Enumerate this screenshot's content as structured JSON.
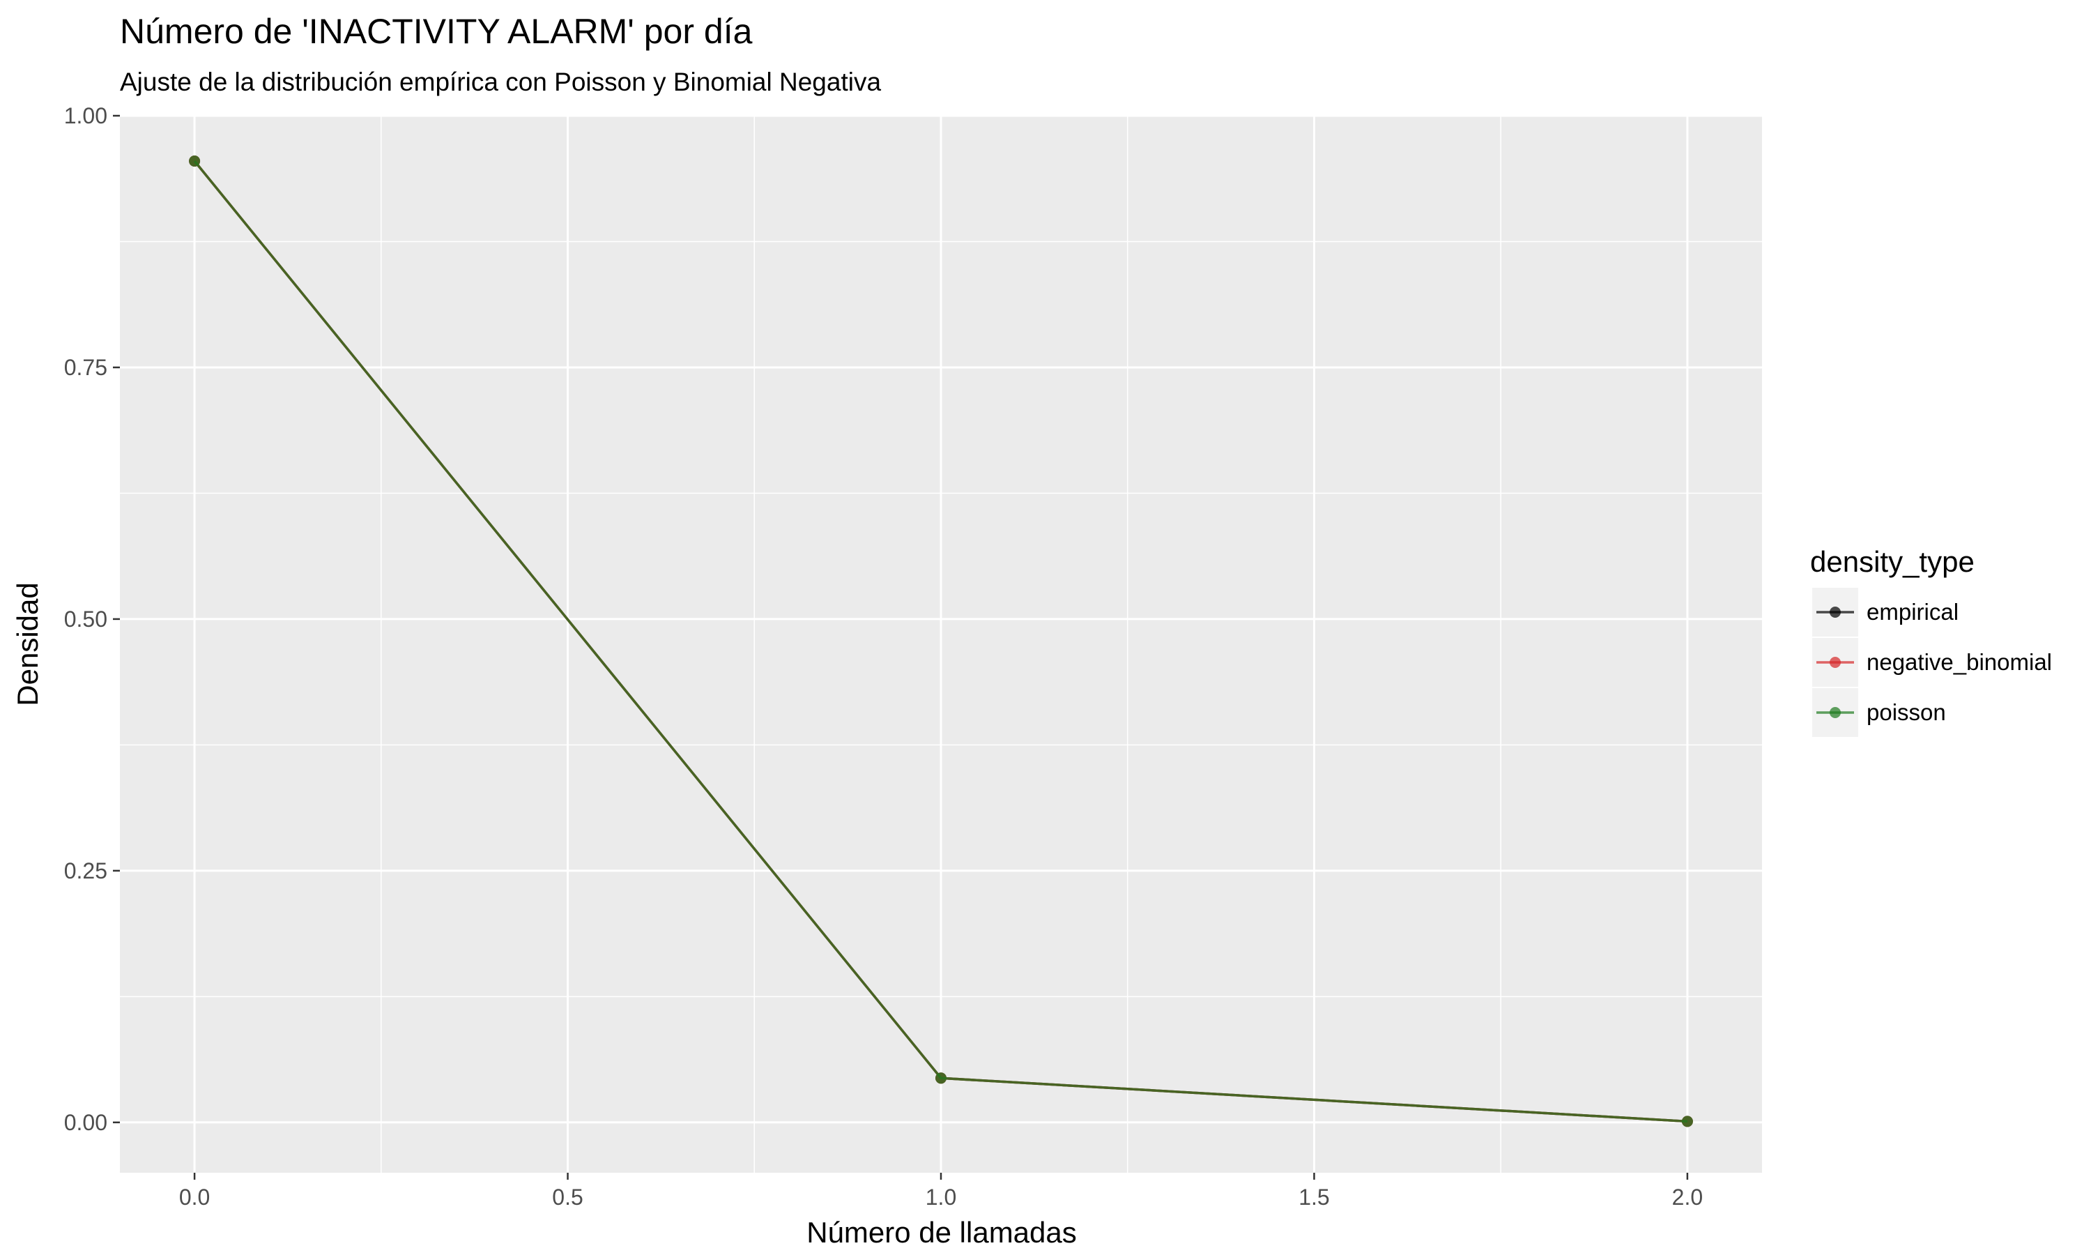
{
  "chart_data": {
    "type": "line",
    "title": "Número de 'INACTIVITY ALARM' por día",
    "subtitle": "Ajuste de la distribución empírica con Poisson y Binomial Negativa",
    "xlabel": "Número de llamadas",
    "ylabel": "Densidad",
    "x": [
      0,
      1,
      2
    ],
    "xlim": [
      -0.1,
      2.1
    ],
    "ylim": [
      -0.05,
      1.0
    ],
    "x_ticks": [
      "0.0",
      "0.5",
      "1.0",
      "1.5",
      "2.0"
    ],
    "y_ticks": [
      "0.00",
      "0.25",
      "0.50",
      "0.75",
      "1.00"
    ],
    "grid": true,
    "legend": {
      "title": "density_type",
      "position": "right"
    },
    "series": [
      {
        "name": "empirical",
        "color": "#000000",
        "values": [
          0.955,
          0.044,
          0.001
        ]
      },
      {
        "name": "negative_binomial",
        "color": "#d62728",
        "values": [
          0.955,
          0.044,
          0.001
        ]
      },
      {
        "name": "poisson",
        "color": "#1e7a1e",
        "values": [
          0.955,
          0.044,
          0.001
        ]
      }
    ]
  }
}
